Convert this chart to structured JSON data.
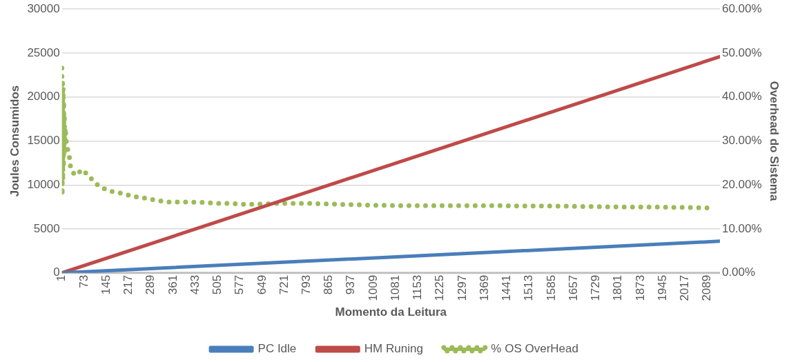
{
  "chart_data": {
    "type": "line",
    "xlabel": "Momento da Leitura",
    "ylabel": "Joules Consumidos",
    "y2label": "Overhead do Sistema",
    "xlim": [
      1,
      2130
    ],
    "xticks": [
      1,
      73,
      145,
      217,
      289,
      361,
      433,
      505,
      577,
      649,
      721,
      793,
      865,
      937,
      1009,
      1081,
      1153,
      1225,
      1297,
      1369,
      1441,
      1513,
      1585,
      1657,
      1729,
      1801,
      1873,
      1945,
      2017,
      2089
    ],
    "ylim": [
      0,
      30000
    ],
    "yticks": [
      0,
      5000,
      10000,
      15000,
      20000,
      25000,
      30000
    ],
    "y2lim": [
      0,
      60
    ],
    "y2ticks": [
      {
        "value": 0,
        "label": "0.00%"
      },
      {
        "value": 10,
        "label": "10.00%"
      },
      {
        "value": 20,
        "label": "20.00%"
      },
      {
        "value": 30,
        "label": "30.00%"
      },
      {
        "value": 40,
        "label": "40.00%"
      },
      {
        "value": 50,
        "label": "50.00%"
      },
      {
        "value": 60,
        "label": "60.00%"
      }
    ],
    "grid": "y",
    "legend": "bottom",
    "series": [
      {
        "name": "PC Idle",
        "color": "#4a7ebb",
        "x": [
          1,
          2130
        ],
        "values": [
          0,
          3600
        ]
      },
      {
        "name": "HM Runing",
        "color": "#be4b48",
        "x": [
          1,
          2130
        ],
        "values": [
          0,
          24600
        ]
      },
      {
        "name": "% OS OverHead",
        "color": "#9bbb59",
        "axis": "y2",
        "line_style": "dotted",
        "x": [
          1,
          2,
          3,
          4,
          5,
          6,
          7,
          8,
          9,
          10,
          12,
          15,
          20,
          25,
          30,
          44,
          68,
          92,
          121,
          156,
          195,
          231,
          269,
          307,
          348,
          386,
          425,
          463,
          503,
          544,
          585,
          623,
          700,
          800,
          900,
          1000,
          1100,
          1200,
          1300,
          1400,
          1500,
          1600,
          1700,
          1800,
          1900,
          2000,
          2089
        ],
        "values": [
          46.6,
          17.6,
          44,
          21,
          42,
          24,
          39,
          27,
          36,
          30,
          33,
          30,
          28,
          26.5,
          23.5,
          22.2,
          23.5,
          21.7,
          19.7,
          18.6,
          18.1,
          17.4,
          17,
          16.5,
          16.1,
          16.1,
          16.1,
          16,
          15.8,
          15.8,
          15.6,
          15.6,
          15.8,
          15.8,
          15.6,
          15.4,
          15.3,
          15.3,
          15.3,
          15.3,
          15.2,
          15.2,
          15.1,
          15,
          15,
          14.9,
          14.8
        ]
      }
    ]
  }
}
